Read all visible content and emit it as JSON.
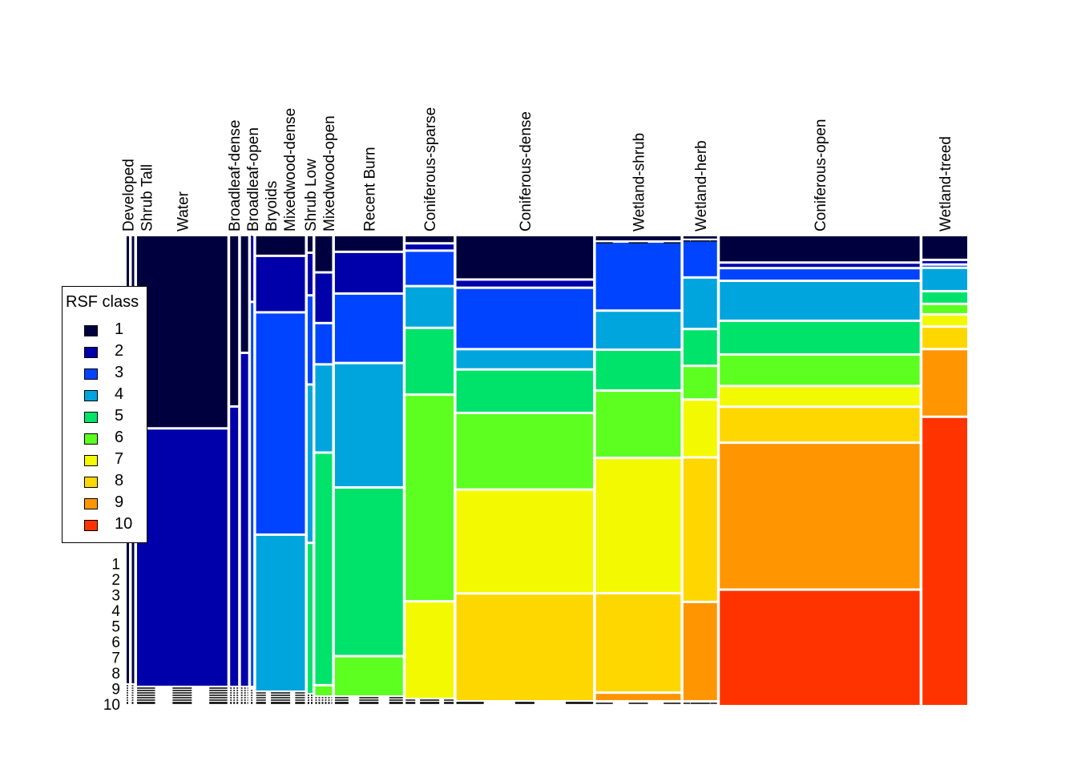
{
  "chart_data": {
    "type": "mosaic",
    "title": "",
    "xlabel": "",
    "ylabel": "",
    "legend": {
      "title": "RSF class",
      "placement": "left",
      "entries": [
        "1",
        "2",
        "3",
        "4",
        "5",
        "6",
        "7",
        "8",
        "9",
        "10"
      ]
    },
    "class_colors": [
      "#00003F",
      "#0000AA",
      "#0044FF",
      "#00A5DD",
      "#00E36B",
      "#5CFF20",
      "#F3F900",
      "#FFD700",
      "#FF9500",
      "#FF3300"
    ],
    "y_tick_labels": [
      "1",
      "2",
      "3",
      "4",
      "5",
      "6",
      "7",
      "8",
      "9",
      "10"
    ],
    "categories": [
      {
        "label": "Developed",
        "share_pct": 0.3,
        "class_pct": [
          100,
          0,
          0,
          0,
          0,
          0,
          0,
          0,
          0,
          0
        ]
      },
      {
        "label": "Shrub Tall",
        "share_pct": 0.3,
        "class_pct": [
          100,
          0,
          0,
          0,
          0,
          0,
          0,
          0,
          0,
          0
        ]
      },
      {
        "label": "Water",
        "share_pct": 11.3,
        "class_pct": [
          42.7,
          57.3,
          0,
          0,
          0,
          0,
          0,
          0,
          0,
          0
        ]
      },
      {
        "label": "Broadleaf-dense",
        "share_pct": 1.0,
        "class_pct": [
          37.8,
          62.2,
          0,
          0,
          0,
          0,
          0,
          0,
          0,
          0
        ]
      },
      {
        "label": "Broadleaf-open",
        "share_pct": 0.9,
        "class_pct": [
          25.8,
          74.2,
          0,
          0,
          0,
          0,
          0,
          0,
          0,
          0
        ]
      },
      {
        "label": "Bryoids",
        "share_pct": 0.3,
        "class_pct": [
          0,
          14.4,
          85.6,
          0,
          0,
          0,
          0,
          0,
          0,
          0
        ]
      },
      {
        "label": "Mixedwood-dense",
        "share_pct": 6.1,
        "class_pct": [
          4.1,
          12.1,
          49.2,
          34.6,
          0,
          0,
          0,
          0,
          0,
          0
        ]
      },
      {
        "label": "Shrub Low",
        "share_pct": 0.6,
        "class_pct": [
          3.4,
          9.0,
          19.4,
          34.9,
          33.3,
          0,
          0,
          0,
          0,
          0
        ]
      },
      {
        "label": "Mixedwood-open",
        "share_pct": 2.1,
        "class_pct": [
          7.8,
          10.8,
          8.7,
          19.2,
          51.5,
          2.0,
          0,
          0,
          0,
          0
        ]
      },
      {
        "label": "Recent Burn",
        "share_pct": 8.5,
        "class_pct": [
          3.2,
          8.8,
          15.0,
          27.3,
          37.2,
          8.5,
          0,
          0,
          0,
          0
        ]
      },
      {
        "label": "Coniferous-sparse",
        "share_pct": 6.0,
        "class_pct": [
          1.3,
          1.1,
          7.4,
          8.8,
          14.4,
          45.7,
          21.3,
          0,
          0,
          0
        ]
      },
      {
        "label": "Coniferous-dense",
        "share_pct": 17.1,
        "class_pct": [
          9.4,
          1.3,
          13.2,
          4.0,
          9.2,
          16.6,
          22.7,
          23.6,
          0,
          0
        ]
      },
      {
        "label": "Wetland-shrub",
        "share_pct": 10.6,
        "class_pct": [
          0.9,
          0,
          14.9,
          8.2,
          8.6,
          14.5,
          29.7,
          21.7,
          1.4,
          0
        ]
      },
      {
        "label": "Wetland-herb",
        "share_pct": 4.2,
        "class_pct": [
          0.5,
          0,
          7.9,
          11.0,
          7.7,
          7.0,
          12.4,
          31.8,
          21.7,
          0
        ]
      },
      {
        "label": "Coniferous-open",
        "share_pct": 25.0,
        "class_pct": [
          5.6,
          0.7,
          2.3,
          8.4,
          7.0,
          6.5,
          4.1,
          7.5,
          32.3,
          25.5
        ]
      },
      {
        "label": "Wetland-treed",
        "share_pct": 5.6,
        "class_pct": [
          5.0,
          0.5,
          0.2,
          4.7,
          2.3,
          1.8,
          2.2,
          4.5,
          14.6,
          64.2
        ]
      }
    ]
  }
}
